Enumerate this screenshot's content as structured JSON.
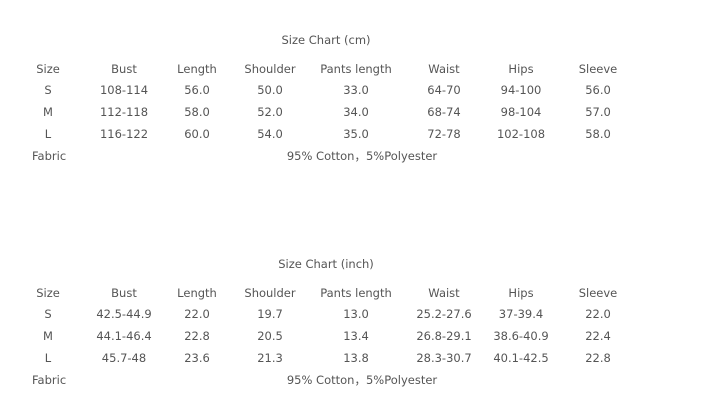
{
  "charts": [
    {
      "title": "Size Chart (cm)",
      "headers": [
        "Size",
        "Bust",
        "Length",
        "Shoulder",
        "Pants length",
        "Waist",
        "Hips",
        "Sleeve"
      ],
      "rows": [
        [
          "S",
          "108-114",
          "56.0",
          "50.0",
          "33.0",
          "64-70",
          "94-100",
          "56.0"
        ],
        [
          "M",
          "112-118",
          "58.0",
          "52.0",
          "34.0",
          "68-74",
          "98-104",
          "57.0"
        ],
        [
          "L",
          "116-122",
          "60.0",
          "54.0",
          "35.0",
          "72-78",
          "102-108",
          "58.0"
        ]
      ],
      "fabric_label": "Fabric",
      "fabric_value": "95% Cotton，5%Polyester"
    },
    {
      "title": "Size Chart (inch)",
      "headers": [
        "Size",
        "Bust",
        "Length",
        "Shoulder",
        "Pants length",
        "Waist",
        "Hips",
        "Sleeve"
      ],
      "rows": [
        [
          "S",
          "42.5-44.9",
          "22.0",
          "19.7",
          "13.0",
          "25.2-27.6",
          "37-39.4",
          "22.0"
        ],
        [
          "M",
          "44.1-46.4",
          "22.8",
          "20.5",
          "13.4",
          "26.8-29.1",
          "38.6-40.9",
          "22.4"
        ],
        [
          "L",
          "45.7-48",
          "23.6",
          "21.3",
          "13.8",
          "28.3-30.7",
          "40.1-42.5",
          "22.8"
        ]
      ],
      "fabric_label": "Fabric",
      "fabric_value": "95% Cotton，5%Polyester"
    }
  ]
}
